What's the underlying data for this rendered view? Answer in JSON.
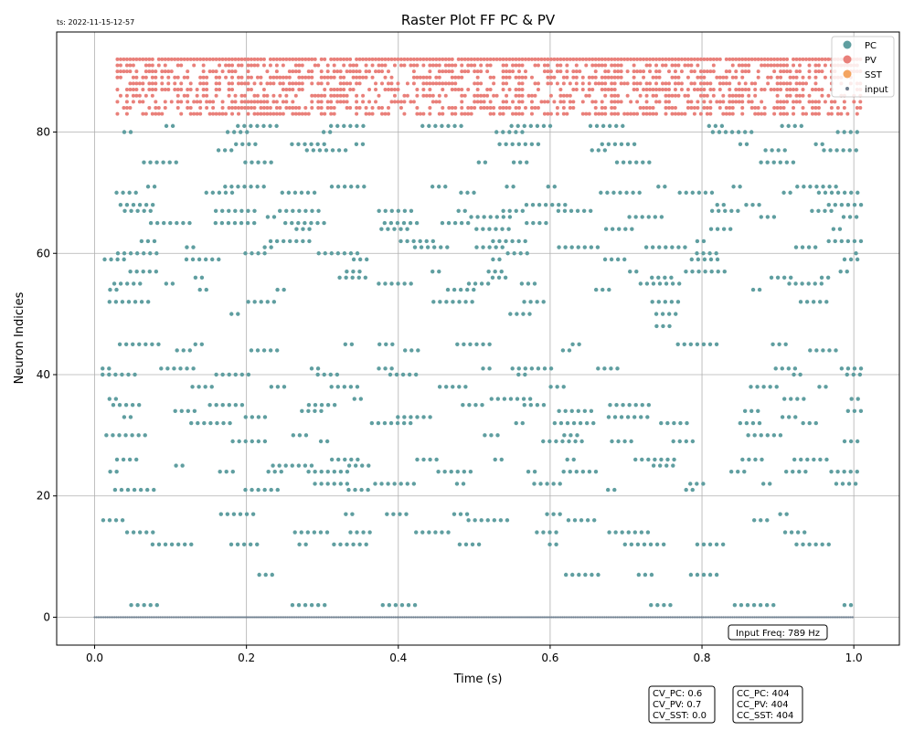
{
  "chart_data": {
    "type": "scatter",
    "title": "Raster Plot FF PC & PV",
    "timestamp": "ts: 2022-11-15-12-57",
    "xlabel": "Time (s)",
    "ylabel": "Neuron Indicies",
    "xlim": [
      -0.05,
      1.06
    ],
    "ylim": [
      -4.6,
      96.5
    ],
    "x_ticks": [
      0.0,
      0.2,
      0.4,
      0.6,
      0.8,
      1.0
    ],
    "x_tick_labels": [
      "0.0",
      "0.2",
      "0.4",
      "0.6",
      "0.8",
      "1.0"
    ],
    "y_ticks": [
      0,
      20,
      40,
      60,
      80
    ],
    "y_tick_labels": [
      "0",
      "20",
      "40",
      "60",
      "80"
    ],
    "grid": true,
    "legend_position": "top-right",
    "series": [
      {
        "name": "PC",
        "color": "#5f9ea0",
        "neuron_range": [
          1,
          81
        ],
        "time_range": [
          0.01,
          1.01
        ],
        "x_sample": [
          0.02,
          0.1,
          0.2,
          0.35,
          0.5,
          0.65,
          0.8,
          0.95
        ],
        "y_sample": [
          4,
          36,
          60,
          12,
          50,
          40,
          28,
          68
        ]
      },
      {
        "name": "PV",
        "color": "#e9807a",
        "neuron_range": [
          83,
          92
        ],
        "time_range": [
          0.03,
          1.01
        ],
        "x_sample": [
          0.05,
          0.2,
          0.4,
          0.6,
          0.8,
          1.0
        ],
        "y_sample": [
          92,
          87,
          84,
          90,
          85,
          83
        ]
      },
      {
        "name": "SST",
        "color": "#f4a460",
        "neuron_range": [],
        "time_range": [],
        "x_sample": [],
        "y_sample": []
      },
      {
        "name": "input",
        "color": "#708090",
        "neuron_range": [
          0,
          0
        ],
        "time_range": [
          0.0,
          1.0
        ],
        "x_sample": [
          0.0,
          0.25,
          0.5,
          0.75,
          1.0
        ],
        "y_sample": [
          0,
          0,
          0,
          0,
          0
        ]
      }
    ],
    "annotations": {
      "input_freq": "Input Freq: 789 Hz",
      "cv_lines": [
        "CV_PC: 0.6",
        "CV_PV: 0.7",
        "CV_SST: 0.0"
      ],
      "cc_lines": [
        "CC_PC: 404",
        "CC_PV: 404",
        "CC_SST: 404"
      ]
    }
  }
}
